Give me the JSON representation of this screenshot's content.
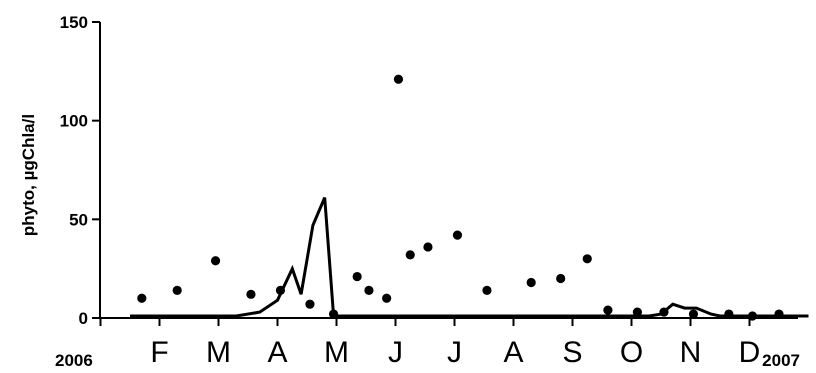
{
  "chart_data": {
    "type": "line",
    "title": "",
    "xlabel": "",
    "ylabel": "phyto, µgChla/l",
    "ylim": [
      0,
      150
    ],
    "yticks": [
      "0",
      "50",
      "100",
      "150"
    ],
    "month_labels": [
      "F",
      "M",
      "A",
      "M",
      "J",
      "J",
      "A",
      "S",
      "O",
      "N",
      "D"
    ],
    "year_labels": [
      "2006",
      "2007"
    ],
    "grid": false,
    "legend": "none",
    "series": [
      {
        "kind": "line",
        "color": "#000000",
        "x": [
          0,
          1,
          1.8,
          2.2,
          2.5,
          2.75,
          2.9,
          3.1,
          3.3,
          3.45,
          3.6,
          3.9,
          4.5,
          5,
          6,
          7,
          8,
          8.5,
          8.8,
          9,
          9.2,
          9.4,
          9.6,
          9.85,
          10,
          10.3,
          10.6,
          10.85,
          11,
          11.5
        ],
        "y": [
          1,
          1,
          1,
          3,
          9,
          25,
          12,
          47,
          61,
          1,
          1,
          1,
          1,
          1,
          1,
          1,
          1,
          1,
          1,
          2,
          7,
          5,
          5,
          2,
          1,
          1,
          1,
          1,
          1,
          1
        ]
      },
      {
        "kind": "scatter",
        "color": "#000000",
        "x": [
          0.2,
          0.8,
          1.45,
          2.05,
          2.55,
          3.05,
          3.45,
          3.85,
          4.05,
          4.35,
          4.55,
          4.75,
          5.05,
          5.55,
          6.05,
          6.8,
          7.3,
          7.75,
          8.1,
          8.6,
          9.05,
          9.55,
          10.15,
          10.55,
          11.0
        ],
        "y": [
          10,
          14,
          29,
          12,
          14,
          7,
          2,
          21,
          14,
          10,
          121,
          32,
          36,
          42,
          14,
          18,
          20,
          30,
          4,
          3,
          3,
          2,
          2,
          1,
          2
        ]
      }
    ]
  }
}
